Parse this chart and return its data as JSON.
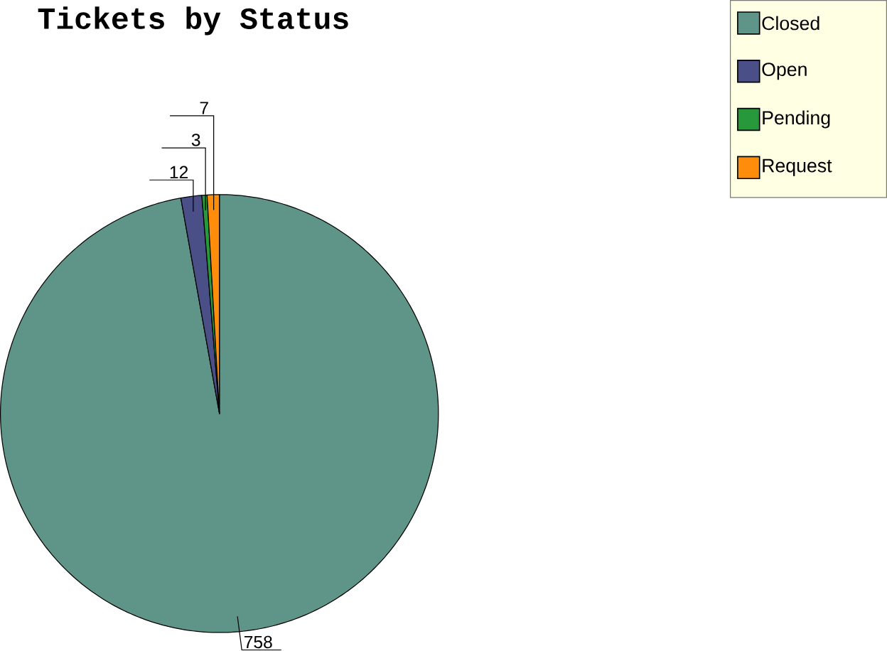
{
  "chart_data": {
    "type": "pie",
    "title": "Tickets by Status",
    "categories": [
      "Closed",
      "Open",
      "Pending",
      "Request"
    ],
    "values": [
      758,
      12,
      3,
      7
    ],
    "colors": [
      "#5f9588",
      "#4b4f88",
      "#27993a",
      "#ff8c0a"
    ],
    "data_labels": true,
    "legend": "top right"
  }
}
